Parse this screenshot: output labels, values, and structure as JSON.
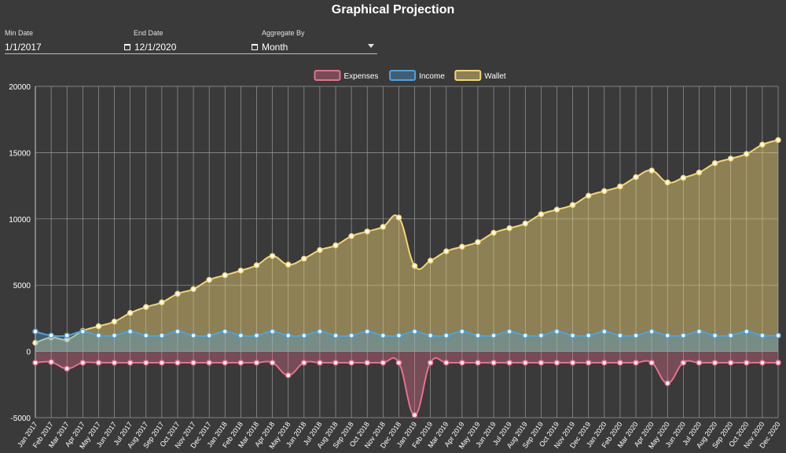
{
  "header": {
    "title": "Graphical Projection"
  },
  "controls": {
    "min_date_label": "Min Date",
    "min_date_value": "1/1/2017",
    "end_date_label": "End Date",
    "end_date_value": "12/1/2020",
    "aggregate_label": "Aggregate By",
    "aggregate_value": "Month"
  },
  "icons": {
    "calendar": "calendar-icon",
    "dropdown": "chevron-down-icon"
  },
  "chart_data": {
    "type": "area",
    "title": "",
    "xlabel": "",
    "ylabel": "",
    "ylim": [
      -5000,
      20000
    ],
    "yticks": [
      -5000,
      0,
      5000,
      10000,
      15000,
      20000
    ],
    "grid": true,
    "legend_position": "top-center",
    "categories": [
      "Jan 2017",
      "Feb 2017",
      "Mar 2017",
      "Apr 2017",
      "May 2017",
      "Jun 2017",
      "Jul 2017",
      "Aug 2017",
      "Sep 2017",
      "Oct 2017",
      "Nov 2017",
      "Dec 2017",
      "Jan 2018",
      "Feb 2018",
      "Mar 2018",
      "Apr 2018",
      "May 2018",
      "Jun 2018",
      "Jul 2018",
      "Aug 2018",
      "Sep 2018",
      "Oct 2018",
      "Nov 2018",
      "Dec 2018",
      "Jan 2019",
      "Feb 2019",
      "Mar 2019",
      "Apr 2019",
      "May 2019",
      "Jun 2019",
      "Jul 2019",
      "Aug 2019",
      "Sep 2019",
      "Oct 2019",
      "Nov 2019",
      "Dec 2019",
      "Jan 2020",
      "Feb 2020",
      "Mar 2020",
      "Apr 2020",
      "May 2020",
      "Jun 2020",
      "Jul 2020",
      "Aug 2020",
      "Sep 2020",
      "Oct 2020",
      "Nov 2020",
      "Dec 2020"
    ],
    "series": [
      {
        "name": "Expenses",
        "color": "#e8708f",
        "fill": "rgba(232,112,143,0.35)",
        "values": [
          -850,
          -800,
          -1300,
          -850,
          -850,
          -850,
          -850,
          -850,
          -850,
          -850,
          -850,
          -850,
          -850,
          -850,
          -850,
          -850,
          -1800,
          -850,
          -850,
          -850,
          -850,
          -850,
          -850,
          -850,
          -4800,
          -850,
          -850,
          -850,
          -850,
          -850,
          -850,
          -850,
          -850,
          -850,
          -850,
          -850,
          -850,
          -850,
          -850,
          -850,
          -2400,
          -850,
          -850,
          -850,
          -850,
          -850,
          -850,
          -850
        ]
      },
      {
        "name": "Income",
        "color": "#4da3e0",
        "fill": "rgba(77,163,224,0.35)",
        "values": [
          1500,
          1200,
          1200,
          1500,
          1200,
          1200,
          1500,
          1200,
          1200,
          1500,
          1200,
          1200,
          1500,
          1200,
          1200,
          1500,
          1200,
          1200,
          1500,
          1200,
          1200,
          1500,
          1200,
          1200,
          1500,
          1200,
          1200,
          1500,
          1200,
          1200,
          1500,
          1200,
          1200,
          1500,
          1200,
          1200,
          1500,
          1200,
          1200,
          1500,
          1200,
          1200,
          1500,
          1200,
          1200,
          1500,
          1200,
          1200
        ]
      },
      {
        "name": "Wallet",
        "color": "#f2d675",
        "fill": "rgba(242,214,117,0.45)",
        "values": [
          650,
          1050,
          900,
          1550,
          1900,
          2250,
          2900,
          3350,
          3700,
          4350,
          4700,
          5400,
          5750,
          6100,
          6500,
          7200,
          6550,
          7000,
          7650,
          8000,
          8700,
          9050,
          9400,
          10100,
          6450,
          6850,
          7550,
          7900,
          8250,
          8950,
          9300,
          9650,
          10350,
          10700,
          11050,
          11750,
          12100,
          12450,
          13150,
          13650,
          12750,
          13100,
          13500,
          14200,
          14550,
          14900,
          15600,
          15950
        ]
      }
    ]
  }
}
